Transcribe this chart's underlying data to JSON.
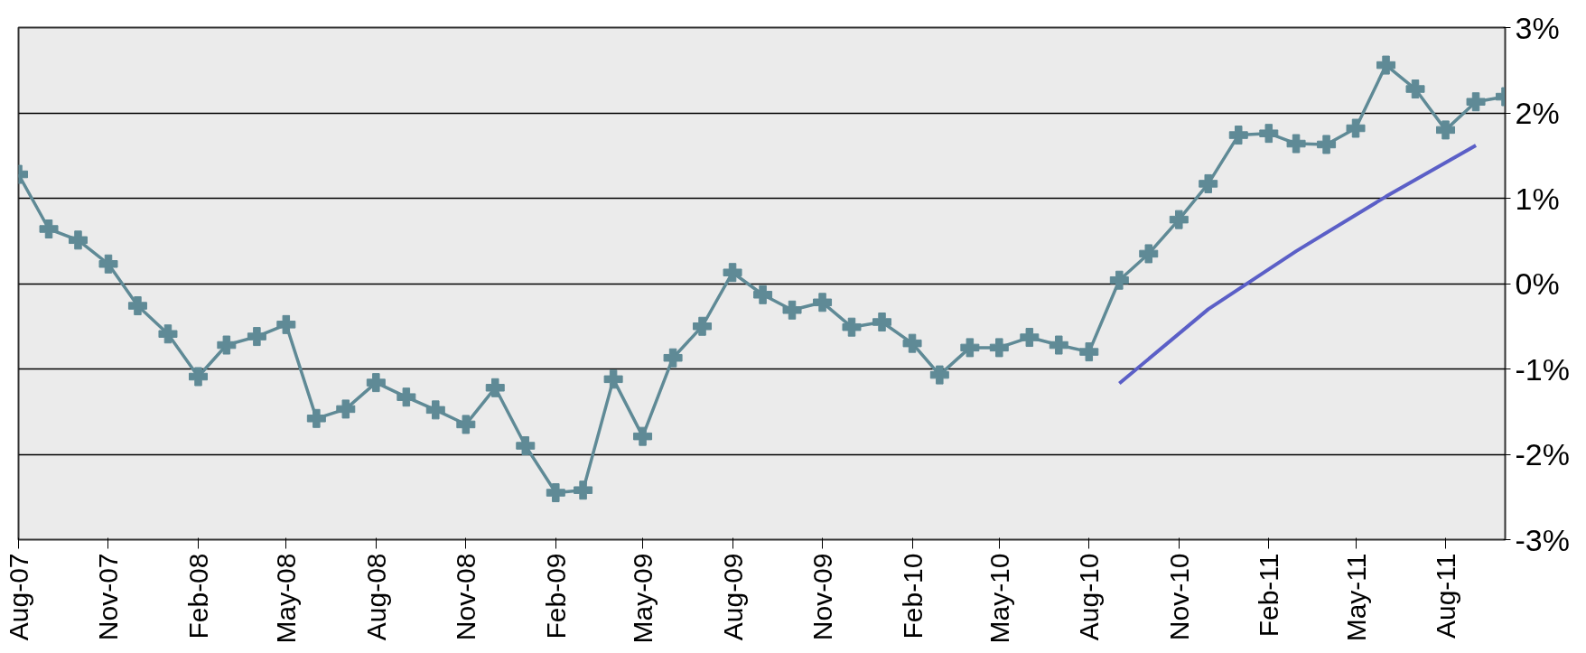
{
  "chart_data": {
    "type": "line",
    "x": [
      "2007-08",
      "2007-09",
      "2007-10",
      "2007-11",
      "2007-12",
      "2008-01",
      "2008-02",
      "2008-03",
      "2008-04",
      "2008-05",
      "2008-06",
      "2008-07",
      "2008-08",
      "2008-09",
      "2008-10",
      "2008-11",
      "2008-12",
      "2009-01",
      "2009-02",
      "2009-03",
      "2009-04",
      "2009-05",
      "2009-06",
      "2009-07",
      "2009-08",
      "2009-09",
      "2009-10",
      "2009-11",
      "2009-12",
      "2010-01",
      "2010-02",
      "2010-03",
      "2010-04",
      "2010-05",
      "2010-06",
      "2010-07",
      "2010-08",
      "2010-09",
      "2010-10",
      "2010-11",
      "2010-12",
      "2011-01",
      "2011-02",
      "2011-03",
      "2011-04",
      "2011-05",
      "2011-06",
      "2011-07",
      "2011-08",
      "2011-09",
      "2011-10"
    ],
    "series": [
      {
        "color": "#5f8a96",
        "marker": "cross",
        "values": [
          1.28,
          0.64,
          0.51,
          0.23,
          -0.26,
          -0.59,
          -1.09,
          -0.72,
          -0.62,
          -0.48,
          -1.58,
          -1.47,
          -1.16,
          -1.33,
          -1.48,
          -1.65,
          -1.22,
          -1.9,
          -2.45,
          -2.42,
          -1.12,
          -1.79,
          -0.87,
          -0.5,
          0.13,
          -0.13,
          -0.31,
          -0.22,
          -0.51,
          -0.45,
          -0.7,
          -1.07,
          -0.75,
          -0.75,
          -0.63,
          -0.72,
          -0.8,
          0.04,
          0.35,
          0.75,
          1.17,
          1.74,
          1.76,
          1.64,
          1.63,
          1.82,
          2.56,
          2.28,
          1.8,
          2.13,
          2.19
        ]
      },
      {
        "type": "line",
        "color": "#5b5fc7",
        "marker": "none",
        "x": [
          "2010-09",
          "2010-12",
          "2011-03",
          "2011-06",
          "2011-09"
        ],
        "values": [
          -1.17,
          -0.3,
          0.38,
          1.02,
          1.62
        ]
      }
    ],
    "xlim": [
      "2007-08",
      "2011-10"
    ],
    "xticks": [
      {
        "value": "2007-08",
        "label": "Aug-07"
      },
      {
        "value": "2007-11",
        "label": "Nov-07"
      },
      {
        "value": "2008-02",
        "label": "Feb-08"
      },
      {
        "value": "2008-05",
        "label": "May-08"
      },
      {
        "value": "2008-08",
        "label": "Aug-08"
      },
      {
        "value": "2008-11",
        "label": "Nov-08"
      },
      {
        "value": "2009-02",
        "label": "Feb-09"
      },
      {
        "value": "2009-05",
        "label": "May-09"
      },
      {
        "value": "2009-08",
        "label": "Aug-09"
      },
      {
        "value": "2009-11",
        "label": "Nov-09"
      },
      {
        "value": "2010-02",
        "label": "Feb-10"
      },
      {
        "value": "2010-05",
        "label": "May-10"
      },
      {
        "value": "2010-08",
        "label": "Aug-10"
      },
      {
        "value": "2010-11",
        "label": "Nov-10"
      },
      {
        "value": "2011-02",
        "label": "Feb-11"
      },
      {
        "value": "2011-05",
        "label": "May-11"
      },
      {
        "value": "2011-08",
        "label": "Aug-11"
      }
    ],
    "ylim": [
      -3,
      3
    ],
    "yticks": [
      {
        "value": -3,
        "label": "-3%"
      },
      {
        "value": -2,
        "label": "-2%"
      },
      {
        "value": -1,
        "label": "-1%"
      },
      {
        "value": 0,
        "label": "0%"
      },
      {
        "value": 1,
        "label": "1%"
      },
      {
        "value": 2,
        "label": "2%"
      },
      {
        "value": 3,
        "label": "3%"
      }
    ],
    "grid": "y"
  }
}
